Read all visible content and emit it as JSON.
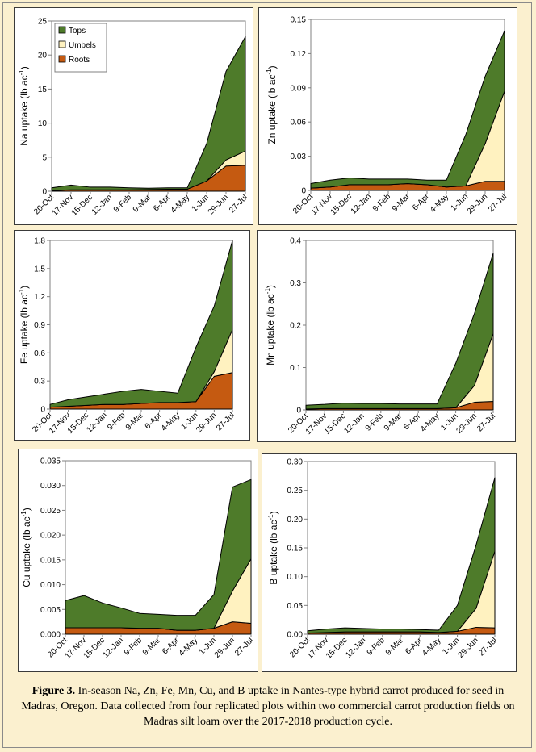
{
  "colors": {
    "tops": "#4e7b2a",
    "umbels": "#fff2c0",
    "roots": "#c55a11"
  },
  "figure_caption": {
    "label": "Figure 3.",
    "text": "In-season Na, Zn, Fe, Mn, Cu, and B uptake in Nantes-type hybrid carrot produced for seed in Madras, Oregon. Data collected from four replicated plots within two commercial carrot production fields on Madras silt loam over the 2017-2018 production cycle."
  },
  "chart_data": [
    {
      "type": "area",
      "element": "Na",
      "ylabel": "Na uptake (lb ac-1)",
      "ylim": [
        0,
        25
      ],
      "yticks": [
        "0",
        "5",
        "10",
        "15",
        "20",
        "25"
      ],
      "categories": [
        "20-Oct",
        "17-Nov",
        "15-Dec",
        "12-Jan",
        "9-Feb",
        "9-Mar",
        "6-Apr",
        "4-May",
        "1-Jun",
        "29-Jun",
        "27-Jul"
      ],
      "legend": {
        "position": "top-left",
        "entries": [
          "Tops",
          "Umbels",
          "Roots"
        ]
      },
      "series": [
        {
          "name": "Roots",
          "values": [
            0.1,
            0.2,
            0.2,
            0.2,
            0.2,
            0.25,
            0.3,
            0.3,
            1.5,
            3.7,
            3.8
          ]
        },
        {
          "name": "Umbels",
          "values": [
            0,
            0,
            0,
            0,
            0,
            0,
            0,
            0,
            0,
            0.9,
            2.1
          ]
        },
        {
          "name": "Tops",
          "values": [
            0.4,
            0.7,
            0.4,
            0.4,
            0.3,
            0.2,
            0.2,
            0.2,
            5.5,
            13,
            16.8
          ]
        }
      ]
    },
    {
      "type": "area",
      "element": "Zn",
      "ylabel": "Zn uptake (lb ac-1)",
      "ylim": [
        0,
        0.15
      ],
      "yticks": [
        "0",
        "0.03",
        "0.06",
        "0.09",
        "0.12",
        "0.15"
      ],
      "categories": [
        "20-Oct",
        "17-Nov",
        "15-Dec",
        "12-Jan",
        "9-Feb",
        "9-Mar",
        "6-Apr",
        "4-May",
        "1-Jun",
        "29-Jun",
        "27-Jul"
      ],
      "series": [
        {
          "name": "Roots",
          "values": [
            0.002,
            0.003,
            0.005,
            0.005,
            0.005,
            0.006,
            0.005,
            0.003,
            0.004,
            0.008,
            0.008
          ]
        },
        {
          "name": "Umbels",
          "values": [
            0,
            0,
            0,
            0,
            0,
            0,
            0,
            0,
            0,
            0.033,
            0.079
          ]
        },
        {
          "name": "Tops",
          "values": [
            0.004,
            0.006,
            0.006,
            0.005,
            0.005,
            0.004,
            0.004,
            0.006,
            0.045,
            0.059,
            0.053
          ]
        }
      ]
    },
    {
      "type": "area",
      "element": "Fe",
      "ylabel": "Fe uptake (lb ac-1)",
      "ylim": [
        0,
        1.8
      ],
      "yticks": [
        "0",
        "0.3",
        "0.6",
        "0.9",
        "1.2",
        "1.5",
        "1.8"
      ],
      "categories": [
        "20-Oct",
        "17-Nov",
        "15-Dec",
        "12-Jan",
        "9-Feb",
        "9-Mar",
        "6-Apr",
        "4-May",
        "1-Jun",
        "29-Jun",
        "27-Jul"
      ],
      "series": [
        {
          "name": "Roots",
          "values": [
            0.02,
            0.03,
            0.04,
            0.05,
            0.05,
            0.06,
            0.07,
            0.07,
            0.08,
            0.35,
            0.39
          ]
        },
        {
          "name": "Umbels",
          "values": [
            0,
            0,
            0,
            0,
            0,
            0,
            0,
            0,
            0,
            0.05,
            0.46
          ]
        },
        {
          "name": "Tops",
          "values": [
            0.03,
            0.07,
            0.09,
            0.11,
            0.14,
            0.15,
            0.12,
            0.1,
            0.58,
            0.7,
            0.95
          ]
        }
      ]
    },
    {
      "type": "area",
      "element": "Mn",
      "ylabel": "Mn uptake (lb ac-1)",
      "ylim": [
        0,
        0.4
      ],
      "yticks": [
        "0",
        "0.1",
        "0.2",
        "0.3",
        "0.4"
      ],
      "categories": [
        "20-Oct",
        "17-Nov",
        "15-Dec",
        "12-Jan",
        "9-Feb",
        "9-Mar",
        "6-Apr",
        "4-May",
        "1-Jun",
        "29-Jun",
        "27-Jul"
      ],
      "series": [
        {
          "name": "Roots",
          "values": [
            0.002,
            0.003,
            0.003,
            0.003,
            0.003,
            0.003,
            0.003,
            0.003,
            0.005,
            0.018,
            0.02
          ]
        },
        {
          "name": "Umbels",
          "values": [
            0,
            0,
            0,
            0,
            0,
            0,
            0,
            0,
            0,
            0.04,
            0.16
          ]
        },
        {
          "name": "Tops",
          "values": [
            0.009,
            0.01,
            0.013,
            0.012,
            0.012,
            0.011,
            0.011,
            0.011,
            0.105,
            0.17,
            0.19
          ]
        }
      ]
    },
    {
      "type": "area",
      "element": "Cu",
      "ylabel": "Cu uptake (lb ac-1)",
      "ylim": [
        0,
        0.035
      ],
      "yticks": [
        "0.000",
        "0.005",
        "0.010",
        "0.015",
        "0.020",
        "0.025",
        "0.030",
        "0.035"
      ],
      "categories": [
        "20-Oct",
        "17-Nov",
        "15-Dec",
        "12-Jan",
        "9-Feb",
        "9-Mar",
        "6-Apr",
        "4-May",
        "1-Jun",
        "29-Jun",
        "27-Jul"
      ],
      "series": [
        {
          "name": "Roots",
          "values": [
            0.0013,
            0.0013,
            0.0013,
            0.0013,
            0.0012,
            0.0012,
            0.0008,
            0.0008,
            0.0012,
            0.0025,
            0.0022
          ]
        },
        {
          "name": "Umbels",
          "values": [
            0,
            0,
            0,
            0,
            0,
            0,
            0,
            0,
            0,
            0.0062,
            0.013
          ]
        },
        {
          "name": "Tops",
          "values": [
            0.0055,
            0.0065,
            0.005,
            0.004,
            0.003,
            0.0028,
            0.003,
            0.003,
            0.0068,
            0.021,
            0.016
          ]
        }
      ]
    },
    {
      "type": "area",
      "element": "B",
      "ylabel": "B uptake (lb ac-1)",
      "ylim": [
        0,
        0.3
      ],
      "yticks": [
        "0.00",
        "0.05",
        "0.10",
        "0.15",
        "0.20",
        "0.25",
        "0.30"
      ],
      "categories": [
        "20-Oct",
        "17-Nov",
        "15-Dec",
        "12-Jan",
        "9-Feb",
        "9-Mar",
        "6-Apr",
        "4-May",
        "1-Jun",
        "29-Jun",
        "27-Jul"
      ],
      "series": [
        {
          "name": "Roots",
          "values": [
            0.002,
            0.003,
            0.004,
            0.004,
            0.004,
            0.004,
            0.004,
            0.003,
            0.005,
            0.012,
            0.011
          ]
        },
        {
          "name": "Umbels",
          "values": [
            0,
            0,
            0,
            0,
            0,
            0,
            0,
            0,
            0,
            0.033,
            0.133
          ]
        },
        {
          "name": "Tops",
          "values": [
            0.004,
            0.006,
            0.007,
            0.006,
            0.005,
            0.005,
            0.004,
            0.004,
            0.045,
            0.11,
            0.128
          ]
        }
      ]
    }
  ]
}
